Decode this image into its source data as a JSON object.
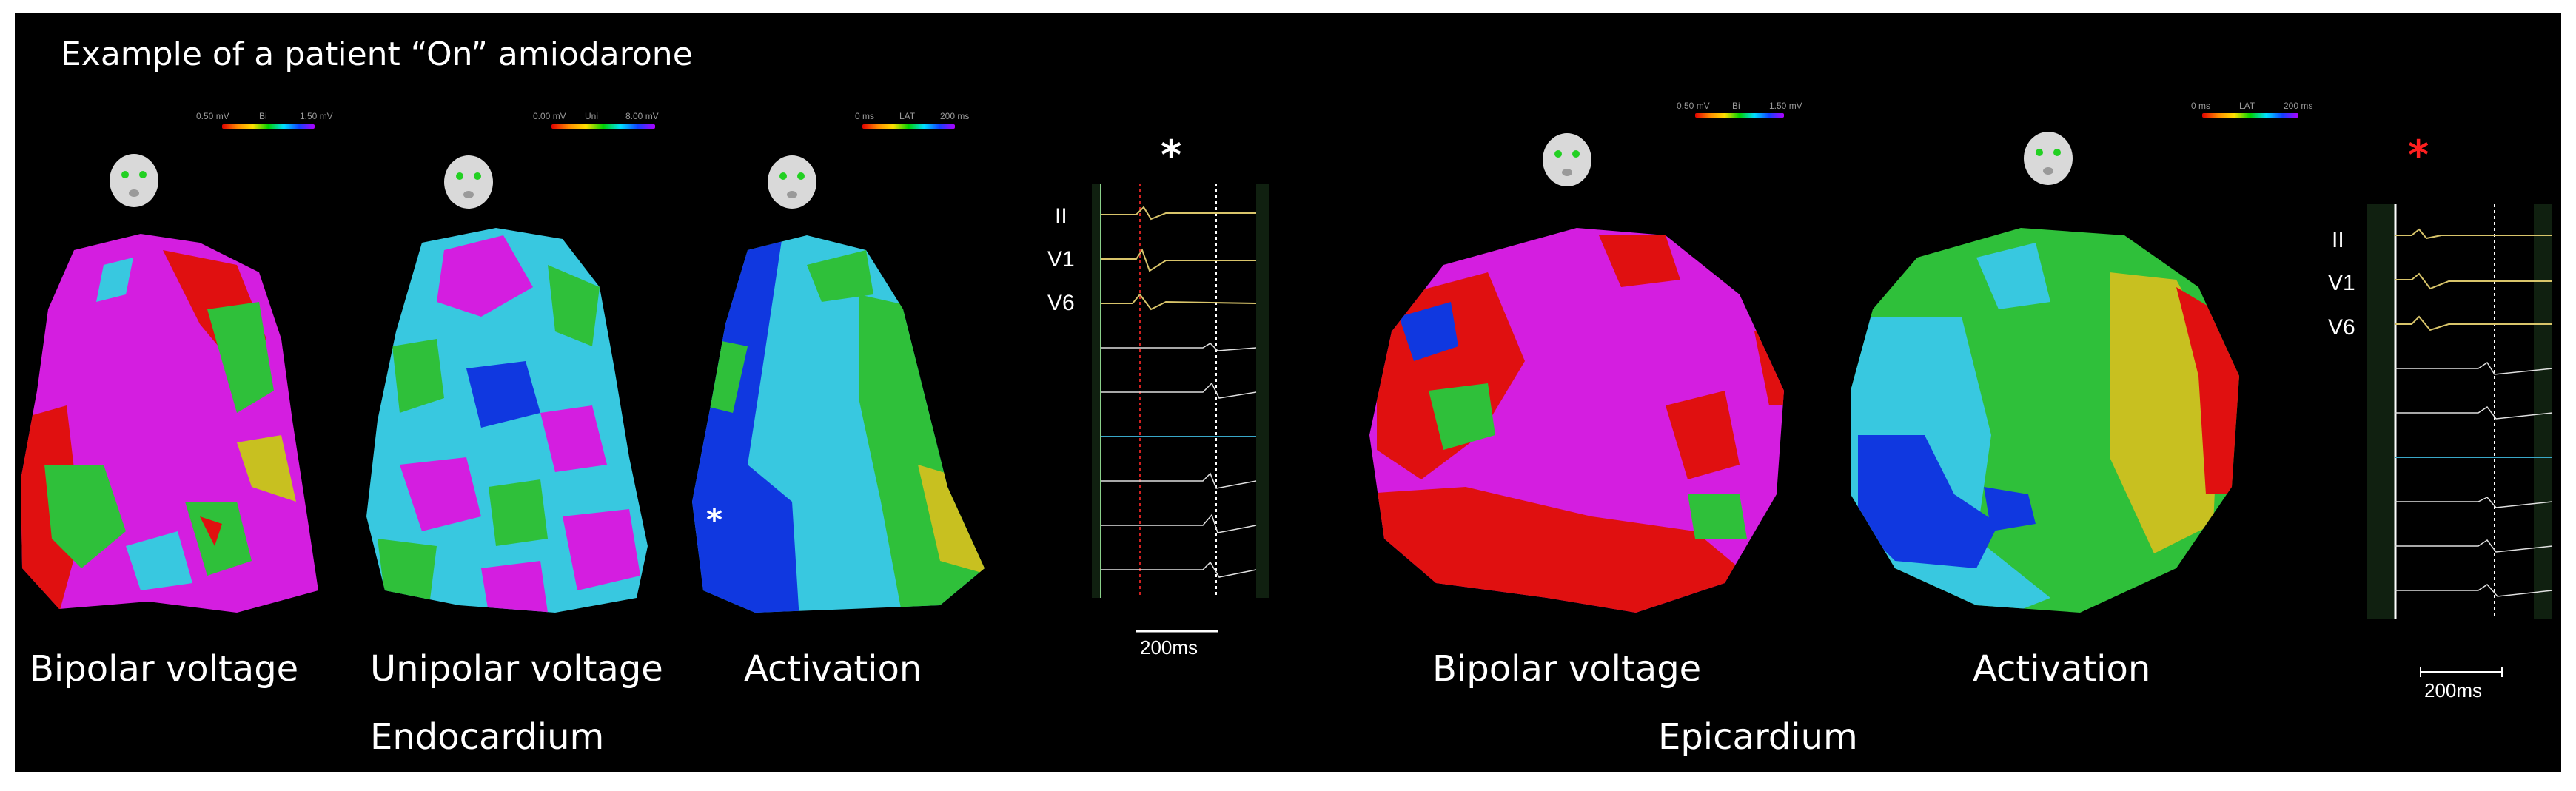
{
  "figure": {
    "title": "Example of a patient “On” amiodarone",
    "panels": {
      "endo_bipolar": "Bipolar voltage",
      "endo_unipolar": "Unipolar voltage",
      "endo_activation": "Activation",
      "epi_bipolar": "Bipolar voltage",
      "epi_activation": "Activation"
    },
    "sections": {
      "endocardium": "Endocardium",
      "epicardium": "Epicardium"
    },
    "ecg_endo": {
      "marker": "*",
      "leads": [
        "II",
        "V1",
        "V6"
      ],
      "scale_label": "200ms"
    },
    "ecg_epi": {
      "marker": "*",
      "leads": [
        "II",
        "V1",
        "V6"
      ],
      "scale_label": "200ms"
    },
    "endo_activation_marker": "*",
    "colors": {
      "background": "#000000",
      "magenta": "#d41ee0",
      "red": "#e01010",
      "green": "#2fc03a",
      "cyan": "#38c8e0",
      "blue": "#1038e0",
      "yellow": "#c8c020",
      "trace_yellow": "#d8c46a",
      "trace_cyan": "#39a7c8",
      "marker_red": "#ff2020"
    },
    "legend_scales": {
      "bipolar_endo": {
        "min": "0.50 mV",
        "label": "Bi",
        "max": "1.50 mV"
      },
      "unipolar_endo": {
        "min": "0.00 mV",
        "label": "Uni",
        "max": "8.00 mV"
      },
      "activation_endo": {
        "min": "0 ms",
        "label": "LAT",
        "max": "200 ms"
      },
      "bipolar_epi": {
        "min": "0.50 mV",
        "label": "Bi",
        "max": "1.50 mV"
      },
      "activation_epi": {
        "min": "0 ms",
        "label": "LAT",
        "max": "200 ms"
      }
    },
    "icons": [
      "head-orientation-icon"
    ]
  }
}
